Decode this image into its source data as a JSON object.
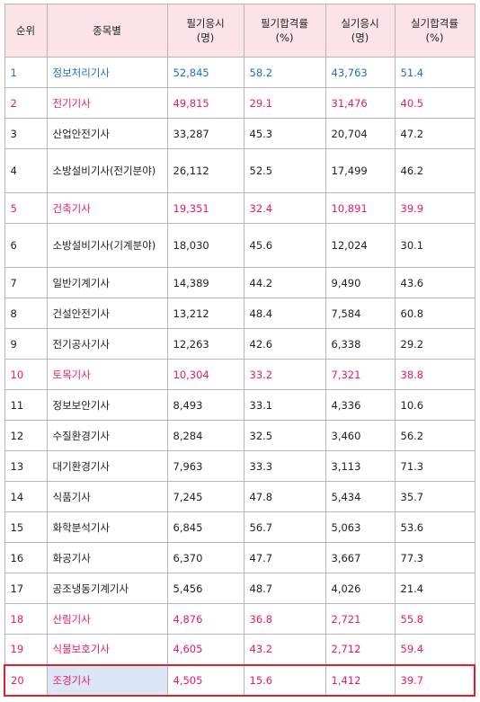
{
  "headers": [
    "순위",
    "종목별",
    "필기응시\n(명)",
    "필기합격률\n(%)",
    "실기응시\n(명)",
    "실기합격률\n(%)"
  ],
  "rows": [
    {
      "rank": "1",
      "name": "정보처리기사",
      "written_applicants": "52,845",
      "written_pass": "58.2",
      "practical_applicants": "43,763",
      "practical_pass": "51.4",
      "color": "blue"
    },
    {
      "rank": "2",
      "name": "전기기사",
      "written_applicants": "49,815",
      "written_pass": "29.1",
      "practical_applicants": "31,476",
      "practical_pass": "40.5",
      "color": "pink"
    },
    {
      "rank": "3",
      "name": "산업안전기사",
      "written_applicants": "33,287",
      "written_pass": "45.3",
      "practical_applicants": "20,704",
      "practical_pass": "47.2",
      "color": "black"
    },
    {
      "rank": "4",
      "name": "소방설비기사(전기분야)",
      "written_applicants": "26,112",
      "written_pass": "52.5",
      "practical_applicants": "17,499",
      "practical_pass": "46.2",
      "color": "black"
    },
    {
      "rank": "5",
      "name": "건축기사",
      "written_applicants": "19,351",
      "written_pass": "32.4",
      "practical_applicants": "10,891",
      "practical_pass": "39.9",
      "color": "pink"
    },
    {
      "rank": "6",
      "name": "소방설비기사(기계분야)",
      "written_applicants": "18,030",
      "written_pass": "45.6",
      "practical_applicants": "12,024",
      "practical_pass": "30.1",
      "color": "black"
    },
    {
      "rank": "7",
      "name": "일반기계기사",
      "written_applicants": "14,389",
      "written_pass": "44.2",
      "practical_applicants": "9,490",
      "practical_pass": "43.6",
      "color": "black"
    },
    {
      "rank": "8",
      "name": "건설안전기사",
      "written_applicants": "13,212",
      "written_pass": "48.4",
      "practical_applicants": "7,584",
      "practical_pass": "60.8",
      "color": "black"
    },
    {
      "rank": "9",
      "name": "전기공사기사",
      "written_applicants": "12,263",
      "written_pass": "42.6",
      "practical_applicants": "6,338",
      "practical_pass": "29.2",
      "color": "black"
    },
    {
      "rank": "10",
      "name": "토목기사",
      "written_applicants": "10,304",
      "written_pass": "33.2",
      "practical_applicants": "7,321",
      "practical_pass": "38.8",
      "color": "pink"
    },
    {
      "rank": "11",
      "name": "정보보안기사",
      "written_applicants": "8,493",
      "written_pass": "33.1",
      "practical_applicants": "4,336",
      "practical_pass": "10.6",
      "color": "black"
    },
    {
      "rank": "12",
      "name": "수질환경기사",
      "written_applicants": "8,284",
      "written_pass": "32.5",
      "practical_applicants": "3,460",
      "practical_pass": "56.2",
      "color": "black"
    },
    {
      "rank": "13",
      "name": "대기환경기사",
      "written_applicants": "7,963",
      "written_pass": "33.3",
      "practical_applicants": "3,113",
      "practical_pass": "71.3",
      "color": "black"
    },
    {
      "rank": "14",
      "name": "식품기사",
      "written_applicants": "7,245",
      "written_pass": "47.8",
      "practical_applicants": "5,434",
      "practical_pass": "35.7",
      "color": "black"
    },
    {
      "rank": "15",
      "name": "화학분석기사",
      "written_applicants": "6,845",
      "written_pass": "56.7",
      "practical_applicants": "5,063",
      "practical_pass": "53.6",
      "color": "black"
    },
    {
      "rank": "16",
      "name": "화공기사",
      "written_applicants": "6,370",
      "written_pass": "47.7",
      "practical_applicants": "3,667",
      "practical_pass": "77.3",
      "color": "black"
    },
    {
      "rank": "17",
      "name": "공조냉동기계기사",
      "written_applicants": "5,456",
      "written_pass": "48.7",
      "practical_applicants": "4,026",
      "practical_pass": "21.4",
      "color": "black"
    },
    {
      "rank": "18",
      "name": "산림기사",
      "written_applicants": "4,876",
      "written_pass": "36.8",
      "practical_applicants": "2,721",
      "practical_pass": "55.8",
      "color": "pink"
    },
    {
      "rank": "19",
      "name": "식물보호기사",
      "written_applicants": "4,605",
      "written_pass": "43.2",
      "practical_applicants": "2,712",
      "practical_pass": "59.4",
      "color": "pink"
    },
    {
      "rank": "20",
      "name": "조경기사",
      "written_applicants": "4,505",
      "written_pass": "15.6",
      "practical_applicants": "1,412",
      "practical_pass": "39.7",
      "color": "pink",
      "highlighted": true
    }
  ],
  "colors": {
    "header_bg": "#fbe3e8",
    "blue": "#1f6fc4",
    "pink": "#e8196e",
    "highlight_border": "#e0202b",
    "highlight_cell": "#dbe7f6"
  }
}
